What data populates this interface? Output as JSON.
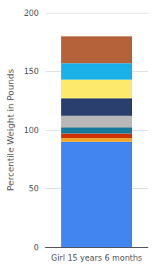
{
  "chart_data": {
    "type": "bar",
    "stacked": true,
    "categories": [
      "Girl 15 years 6 months"
    ],
    "series": [
      {
        "color": "#4285f0",
        "values": [
          90
        ]
      },
      {
        "color": "#f5a623",
        "values": [
          3
        ]
      },
      {
        "color": "#cc3300",
        "values": [
          4
        ]
      },
      {
        "color": "#1a7a9e",
        "values": [
          5
        ]
      },
      {
        "color": "#b8b8b8",
        "values": [
          10
        ]
      },
      {
        "color": "#2b3f6e",
        "values": [
          15
        ]
      },
      {
        "color": "#fde96b",
        "values": [
          16
        ]
      },
      {
        "color": "#1ab0e8",
        "values": [
          14
        ]
      },
      {
        "color": "#b5623a",
        "values": [
          23
        ]
      }
    ],
    "ylabel": "Percentile Weight in Pounds",
    "ylim": [
      0,
      200
    ],
    "yticks": [
      0,
      50,
      100,
      150,
      200
    ],
    "grid": true
  }
}
